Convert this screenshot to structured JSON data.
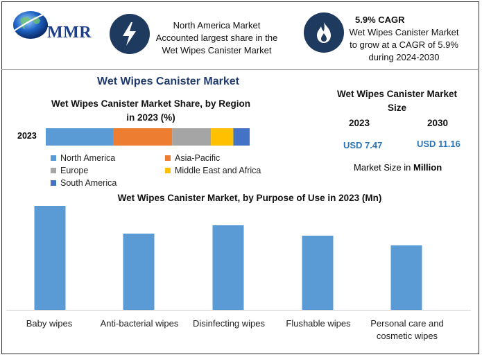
{
  "logo": {
    "text": "MMR"
  },
  "header": {
    "left_icon": "lightning-icon",
    "left_text": [
      "North America Market",
      "Accounted largest share in the",
      "Wet Wipes Canister Market"
    ],
    "right_icon": "flame-icon",
    "right_title": "5.9% CAGR",
    "right_text": [
      "Wet Wipes Canister Market",
      "to grow at a CAGR of 5.9%",
      "during 2024-2030"
    ]
  },
  "main_title": "Wet Wipes Canister Market",
  "market_size": {
    "title_line1": "Wet Wipes Canister Market",
    "title_line2": "Size",
    "year1": "2023",
    "year2": "2030",
    "value1": "USD 7.47",
    "value2": "USD 11.16",
    "unit_prefix": "Market Size in",
    "unit_bold": "Million"
  },
  "chart_data": [
    {
      "type": "bar",
      "orientation": "horizontal-stacked",
      "title": "Wet Wipes Canister Market Share, by Region in 2023 (%)",
      "title_lines": [
        "Wet Wipes Canister Market Share, by Region",
        "in 2023 (%)"
      ],
      "categories": [
        "2023"
      ],
      "series": [
        {
          "name": "North America",
          "values": [
            33
          ],
          "color": "#5b9bd5"
        },
        {
          "name": "Asia-Pacific",
          "values": [
            29
          ],
          "color": "#ed7d31"
        },
        {
          "name": "Europe",
          "values": [
            19
          ],
          "color": "#a5a5a5"
        },
        {
          "name": "Middle East and Africa",
          "values": [
            11
          ],
          "color": "#ffc000"
        },
        {
          "name": "South America",
          "values": [
            8
          ],
          "color": "#4472c4"
        }
      ],
      "xlim": [
        0,
        100
      ],
      "legend": "bottom"
    },
    {
      "type": "bar",
      "title": "Wet Wipes Canister Market, by Purpose of Use in 2023 (Mn)",
      "categories": [
        "Baby wipes",
        "Anti-bacterial wipes",
        "Disinfecting wipes",
        "Flushable wipes",
        "Personal care and cosmetic wipes"
      ],
      "category_lines": [
        [
          "Baby wipes"
        ],
        [
          "Anti-bacterial wipes"
        ],
        [
          "Disinfecting wipes"
        ],
        [
          "Flushable wipes"
        ],
        [
          "Personal care and",
          "cosmetic wipes"
        ]
      ],
      "values": [
        150,
        110,
        122,
        107,
        93
      ],
      "ylim": [
        0,
        150
      ],
      "color": "#5b9bd5",
      "grid": false
    }
  ]
}
